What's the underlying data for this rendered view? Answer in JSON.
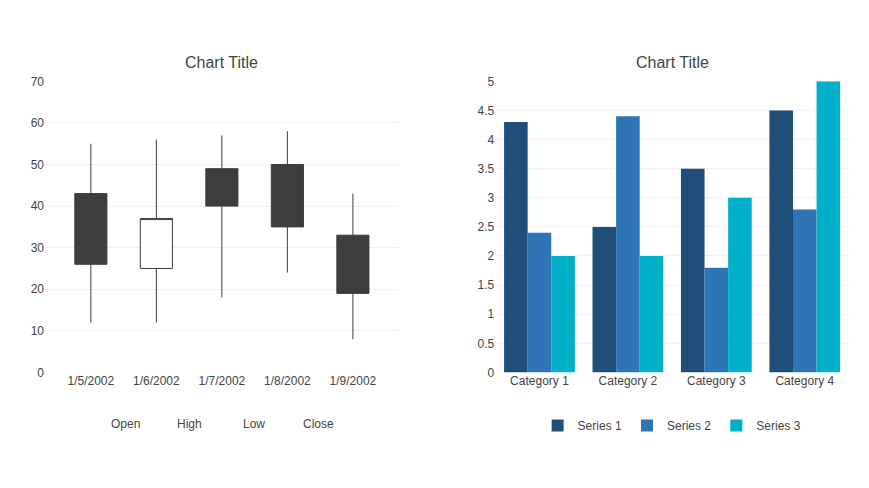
{
  "chart_data": [
    {
      "type": "candlestick",
      "title": "Chart Title",
      "categories": [
        "1/5/2002",
        "1/6/2002",
        "1/7/2002",
        "1/8/2002",
        "1/9/2002"
      ],
      "open": [
        26,
        25,
        40,
        35,
        19
      ],
      "high": [
        55,
        56,
        57,
        58,
        43
      ],
      "low": [
        12,
        12,
        18,
        24,
        8
      ],
      "close": [
        43,
        37,
        49,
        50,
        33
      ],
      "colors": [
        "#3D3D3D",
        "#FFFFFF",
        "#3D3D3D",
        "#3D3D3D",
        "#3D3D3D"
      ],
      "ylim": [
        0,
        70
      ],
      "yticks": [
        0,
        10,
        20,
        30,
        40,
        50,
        60,
        70
      ],
      "grid": true,
      "annotations": [
        "Open",
        "High",
        "Low",
        "Close"
      ]
    },
    {
      "type": "bar",
      "title": "Chart Title",
      "categories": [
        "Category 1",
        "Category 2",
        "Category 3",
        "Category 4"
      ],
      "series": [
        {
          "name": "Series 1",
          "color": "#1F4E79",
          "values": [
            4.3,
            2.5,
            3.5,
            4.5
          ]
        },
        {
          "name": "Series 2",
          "color": "#2E75B6",
          "values": [
            2.4,
            4.4,
            1.8,
            2.8
          ]
        },
        {
          "name": "Series 3",
          "color": "#00B0C8",
          "values": [
            2.0,
            2.0,
            3.0,
            5.0
          ]
        }
      ],
      "ylim": [
        0,
        5
      ],
      "yticks": [
        0,
        0.5,
        1,
        1.5,
        2,
        2.5,
        3,
        3.5,
        4,
        4.5,
        5
      ],
      "grid": true,
      "legend": "bottom"
    }
  ]
}
